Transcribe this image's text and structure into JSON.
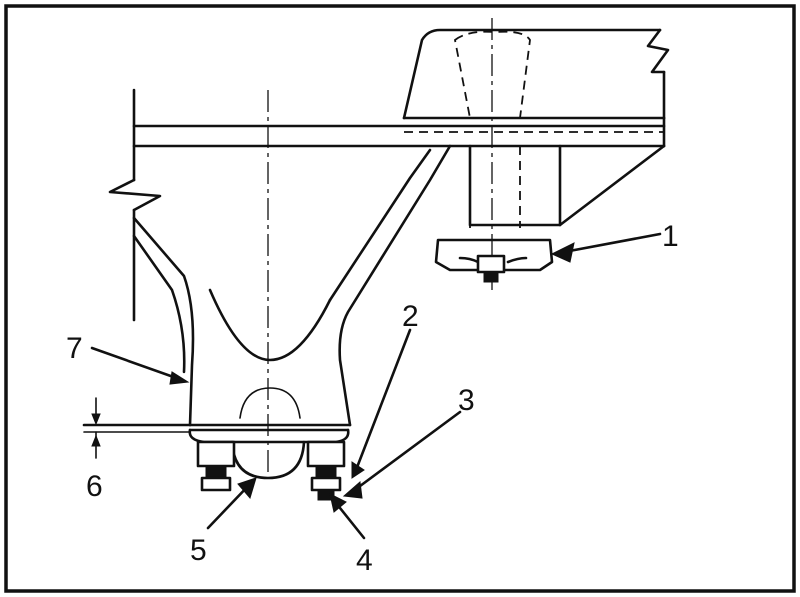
{
  "callouts": [
    {
      "id": "1",
      "text": "1"
    },
    {
      "id": "2",
      "text": "2"
    },
    {
      "id": "3",
      "text": "3"
    },
    {
      "id": "4",
      "text": "4"
    },
    {
      "id": "5",
      "text": "5"
    },
    {
      "id": "6",
      "text": "6"
    },
    {
      "id": "7",
      "text": "7"
    }
  ],
  "colors": {
    "line": "#111111",
    "background": "#ffffff"
  }
}
